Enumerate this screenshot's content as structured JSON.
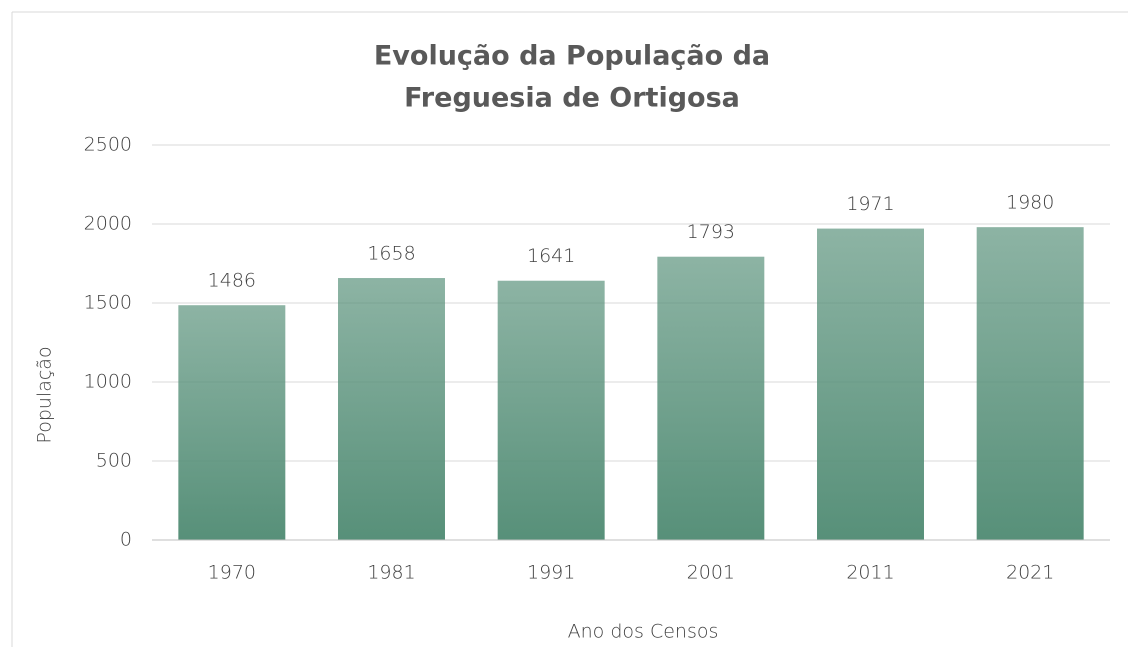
{
  "chart_data": {
    "type": "bar",
    "title": [
      "Evolução da População da",
      "Freguesia de Ortigosa"
    ],
    "x_label": "Ano dos Censos",
    "y_label": "População",
    "categories": [
      "1970",
      "1981",
      "1991",
      "2001",
      "2011",
      "2021"
    ],
    "values": [
      1486,
      1658,
      1641,
      1793,
      1971,
      1980
    ],
    "color": "#579079",
    "ylim": [
      0,
      2500
    ],
    "yticks": [
      0,
      500,
      1000,
      1500,
      2000,
      2500
    ],
    "grid": true
  }
}
